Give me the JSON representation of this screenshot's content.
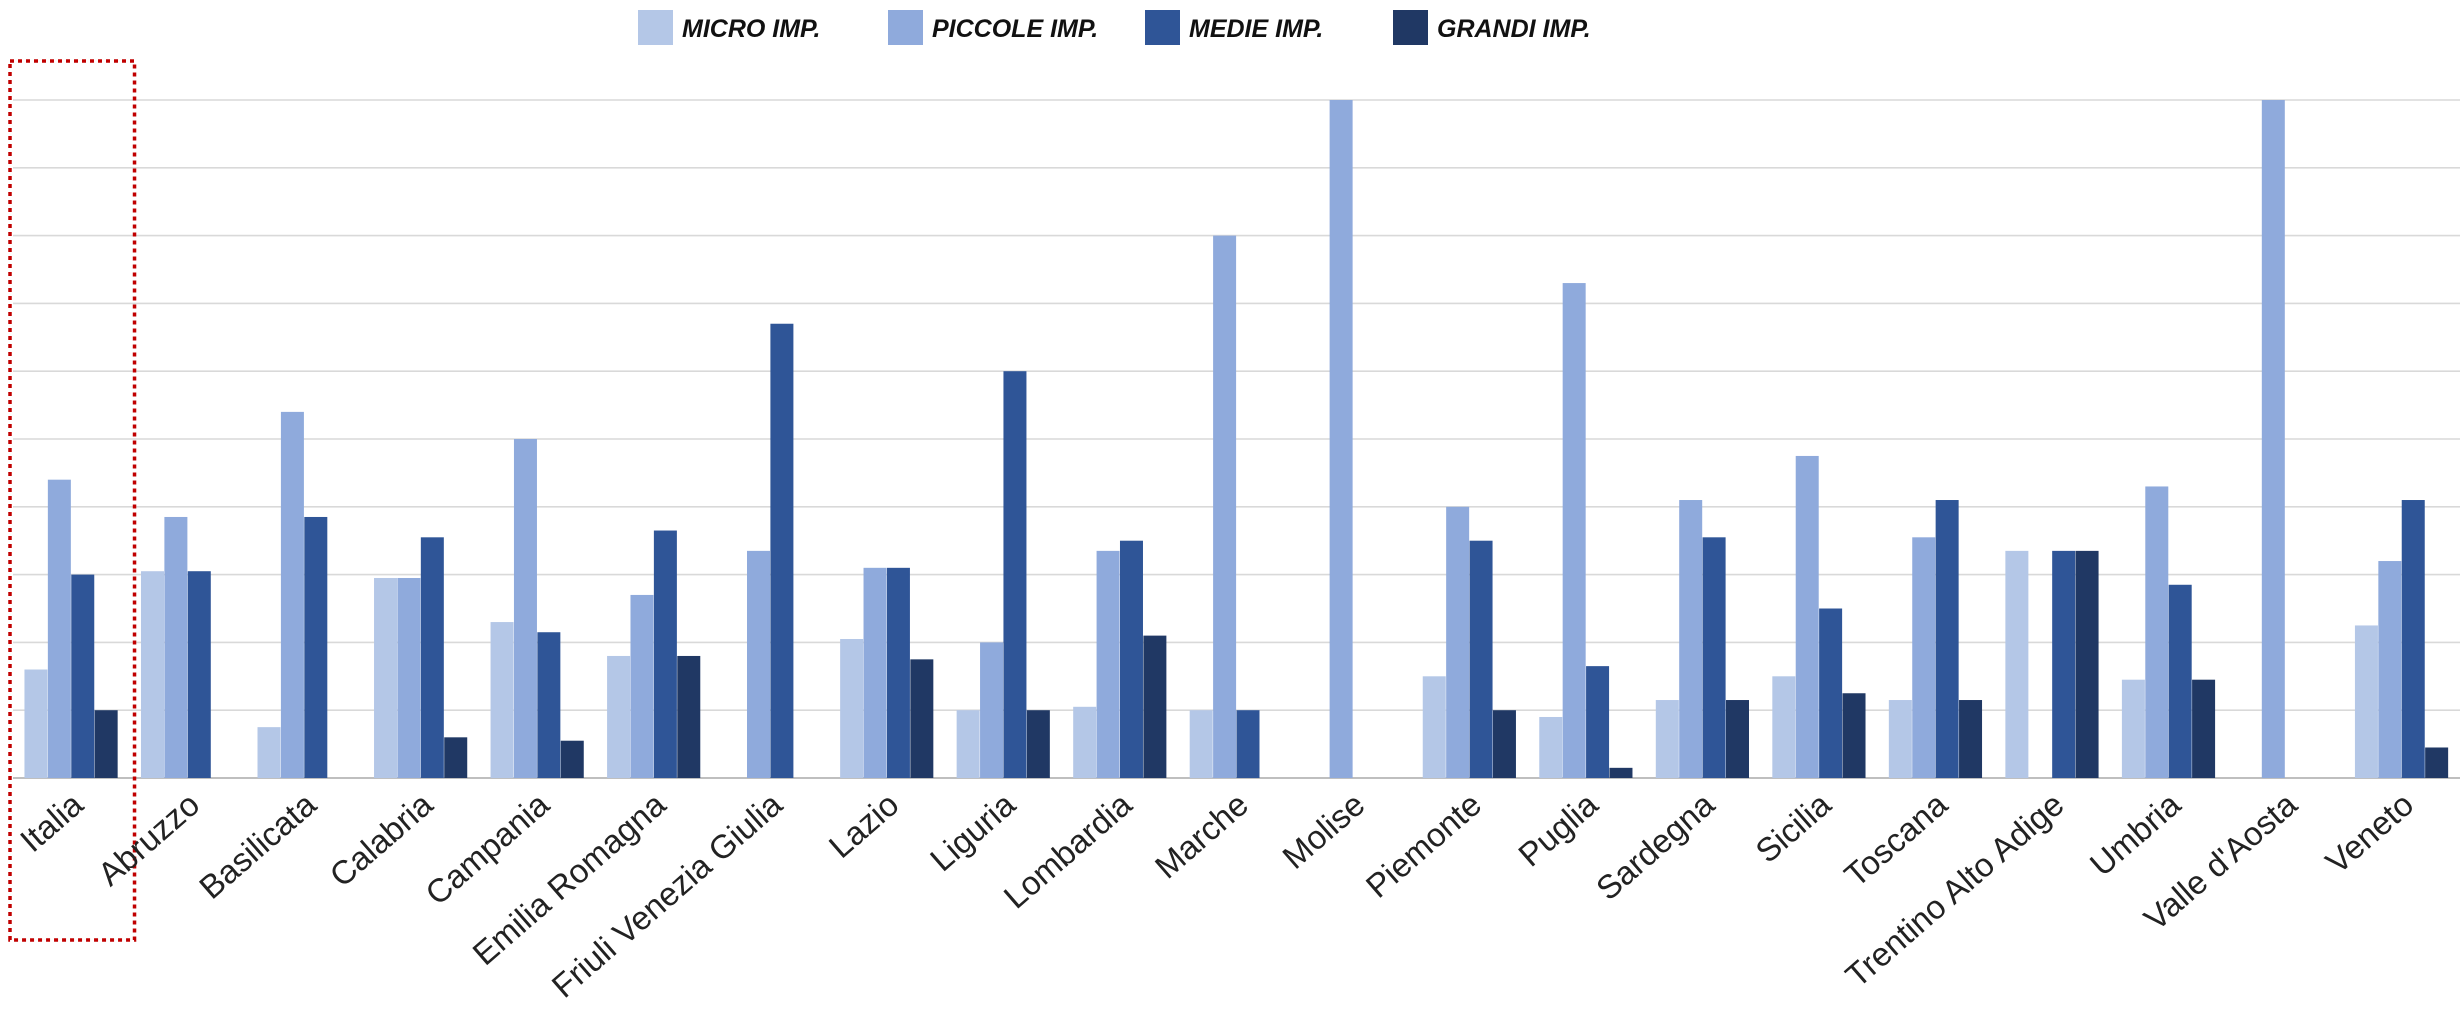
{
  "chart_data": {
    "type": "bar",
    "title": "",
    "xlabel": "",
    "ylabel": "",
    "ylim": [
      0,
      10
    ],
    "gridlines": 10,
    "grid": true,
    "legend_position": "top-center",
    "highlight_category": "Italia",
    "highlight_color": "#c00000",
    "categories": [
      "Italia",
      "Abruzzo",
      "Basilicata",
      "Calabria",
      "Campania",
      "Emilia Romagna",
      "Friuli Venezia Giulia",
      "Lazio",
      "Liguria",
      "Lombardia",
      "Marche",
      "Molise",
      "Piemonte",
      "Puglia",
      "Sardegna",
      "Sicilia",
      "Toscana",
      "Trentino Alto Adige",
      "Umbria",
      "Valle d'Aosta",
      "Veneto"
    ],
    "series": [
      {
        "name": "MICRO IMP.",
        "color": "#b4c7e7",
        "values": [
          1.6,
          3.05,
          0.75,
          2.95,
          2.3,
          1.8,
          0,
          2.05,
          1.0,
          1.05,
          1.0,
          0,
          1.5,
          0.9,
          1.15,
          1.5,
          1.15,
          3.35,
          1.45,
          0,
          2.25
        ]
      },
      {
        "name": "PICCOLE IMP.",
        "color": "#8faadc",
        "values": [
          4.4,
          3.85,
          5.4,
          2.95,
          5.0,
          2.7,
          3.35,
          3.1,
          2.0,
          3.35,
          8.0,
          10.0,
          4.0,
          7.3,
          4.1,
          4.75,
          3.55,
          0,
          4.3,
          10.0,
          3.2
        ]
      },
      {
        "name": "MEDIE IMP.",
        "color": "#2f5597",
        "values": [
          3.0,
          3.05,
          3.85,
          3.55,
          2.15,
          3.65,
          6.7,
          3.1,
          6.0,
          3.5,
          1.0,
          0,
          3.5,
          1.65,
          3.55,
          2.5,
          4.1,
          3.35,
          2.85,
          0,
          4.1
        ]
      },
      {
        "name": "GRANDI IMP.",
        "color": "#203864",
        "values": [
          1.0,
          0,
          0,
          0.6,
          0.55,
          1.8,
          0,
          1.75,
          1.0,
          2.1,
          0,
          0,
          1.0,
          0.15,
          1.15,
          1.25,
          1.15,
          3.35,
          1.45,
          0,
          0.45
        ]
      }
    ]
  }
}
